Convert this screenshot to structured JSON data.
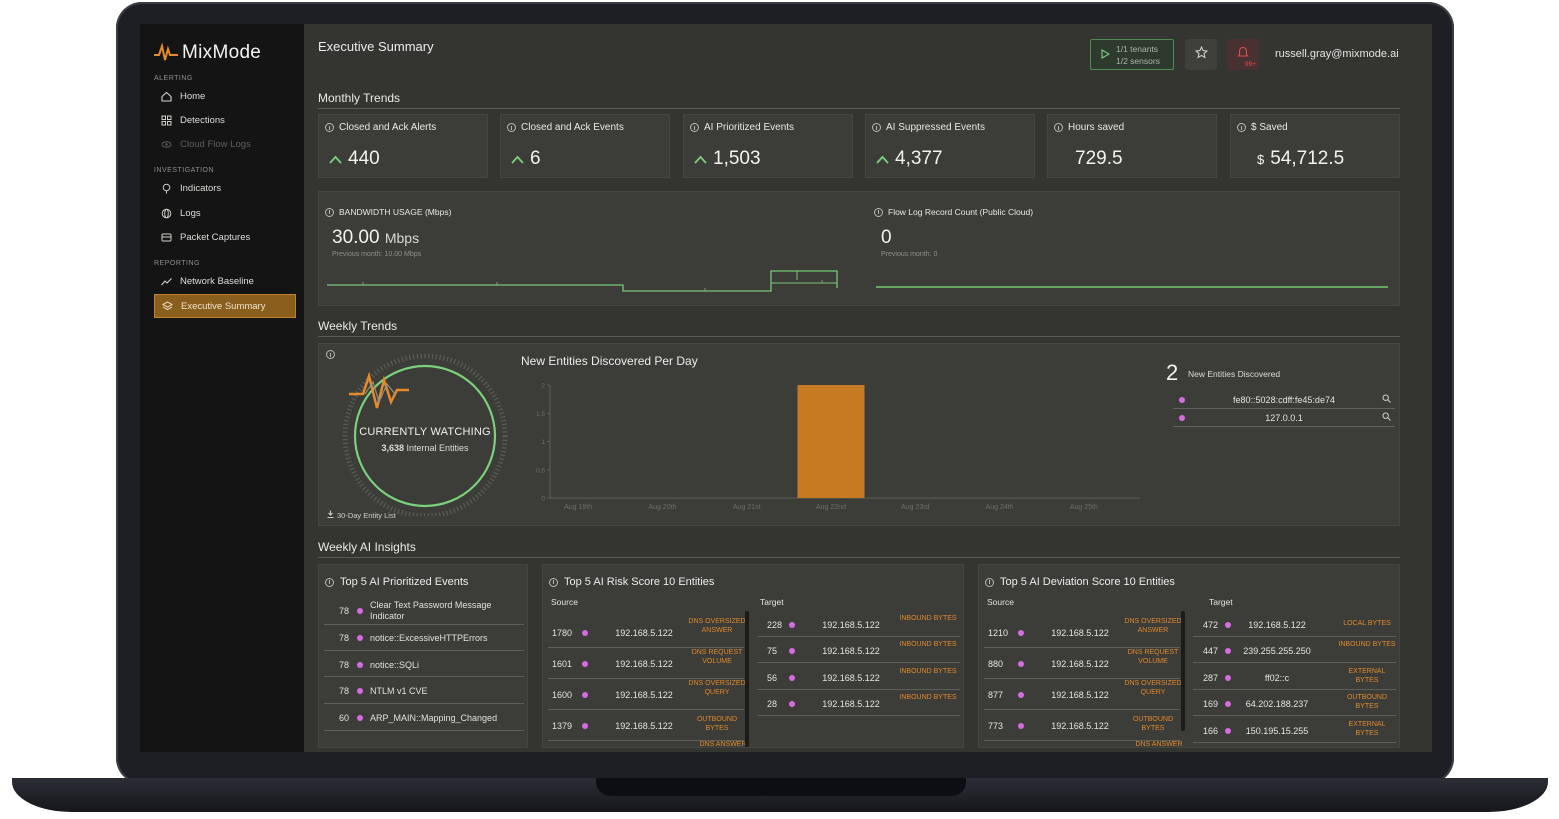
{
  "brand": {
    "name": "MixMode"
  },
  "sidebar": {
    "sections": [
      "ALERTING",
      "INVESTIGATION",
      "REPORTING"
    ],
    "items": [
      {
        "label": "Home",
        "icon": "home-icon"
      },
      {
        "label": "Detections",
        "icon": "grid-icon"
      },
      {
        "label": "Cloud Flow Logs",
        "icon": "eye-icon"
      },
      {
        "label": "Indicators",
        "icon": "bulb-icon"
      },
      {
        "label": "Logs",
        "icon": "globe-icon"
      },
      {
        "label": "Packet Captures",
        "icon": "archive-icon"
      },
      {
        "label": "Network Baseline",
        "icon": "trend-icon"
      },
      {
        "label": "Executive Summary",
        "icon": "layers-icon"
      }
    ]
  },
  "header": {
    "title": "Executive Summary",
    "tenants": "1/1 tenants",
    "sensors": "1/2 sensors",
    "notifications": "99+",
    "user": "russell.gray@mixmode.ai"
  },
  "monthly": {
    "title": "Monthly Trends",
    "kpis": [
      {
        "label": "Closed and Ack Alerts",
        "value": "440",
        "prefix": "",
        "trend": "up"
      },
      {
        "label": "Closed and Ack Events",
        "value": "6",
        "prefix": "",
        "trend": "up"
      },
      {
        "label": "AI Prioritized Events",
        "value": "1,503",
        "prefix": "",
        "trend": "up"
      },
      {
        "label": "AI Suppressed Events",
        "value": "4,377",
        "prefix": "",
        "trend": "up"
      },
      {
        "label": "Hours saved",
        "value": "729.5",
        "prefix": "",
        "trend": "none"
      },
      {
        "label": "$ Saved",
        "value": "54,712.5",
        "prefix": "$",
        "trend": "none"
      }
    ],
    "bandwidth": {
      "label": "BANDWIDTH USAGE (Mbps)",
      "value": "30.00",
      "unit": "Mbps",
      "previous": "Previous month: 10.00 Mbps"
    },
    "flowlog": {
      "label": "Flow Log Record Count (Public Cloud)",
      "value": "0",
      "previous": "Previous month: 0"
    }
  },
  "weekly": {
    "title": "Weekly Trends",
    "watching_title": "CURRENTLY WATCHING",
    "watching_count": "3,638",
    "watching_label": "Internal Entities",
    "entity_list_link": "30-Day Entity List",
    "new_count": "2",
    "new_label": "New Entities Discovered",
    "entities": [
      "fe80::5028:cdff:fe45:de74",
      "127.0.0.1"
    ]
  },
  "chart_data": {
    "type": "bar",
    "title": "New Entities Discovered Per Day",
    "categories": [
      "Aug 19th",
      "Aug 20th",
      "Aug 21st",
      "Aug 22nd",
      "Aug 23rd",
      "Aug 24th",
      "Aug 25th"
    ],
    "values": [
      0,
      0,
      0,
      2,
      0,
      0,
      0
    ],
    "yticks": [
      "0",
      "0.5",
      "1",
      "1.5",
      "2"
    ],
    "ylim": [
      0,
      2
    ],
    "color": "#c77a22"
  },
  "insights": {
    "title": "Weekly AI Insights",
    "prioritized": {
      "title": "Top 5 AI Prioritized Events",
      "rows": [
        {
          "score": "78",
          "name": "Clear Text Password Message Indicator"
        },
        {
          "score": "78",
          "name": "notice::ExcessiveHTTPErrors"
        },
        {
          "score": "78",
          "name": "notice::SQLi"
        },
        {
          "score": "78",
          "name": "NTLM v1 CVE"
        },
        {
          "score": "60",
          "name": "ARP_MAIN::Mapping_Changed"
        }
      ]
    },
    "risk": {
      "title": "Top 5 AI Risk Score 10 Entities",
      "source_label": "Source",
      "target_label": "Target",
      "source": [
        {
          "n": "1780",
          "ip": "192.168.5.122",
          "tag": "DNS OVERSIZED ANSWER"
        },
        {
          "n": "1601",
          "ip": "192.168.5.122",
          "tag": "DNS REQUEST VOLUME"
        },
        {
          "n": "1600",
          "ip": "192.168.5.122",
          "tag": "DNS OVERSIZED QUERY"
        },
        {
          "n": "1379",
          "ip": "192.168.5.122",
          "tag": "OUTBOUND BYTES"
        }
      ],
      "source_more": "DNS ANSWER",
      "target": [
        {
          "n": "228",
          "ip": "192.168.5.122",
          "tag": "INBOUND BYTES"
        },
        {
          "n": "75",
          "ip": "192.168.5.122",
          "tag": "INBOUND BYTES"
        },
        {
          "n": "56",
          "ip": "192.168.5.122",
          "tag": "INBOUND BYTES"
        },
        {
          "n": "28",
          "ip": "192.168.5.122",
          "tag": "INBOUND BYTES"
        }
      ]
    },
    "deviation": {
      "title": "Top 5 AI Deviation Score 10 Entities",
      "source_label": "Source",
      "target_label": "Target",
      "source": [
        {
          "n": "1210",
          "ip": "192.168.5.122",
          "tag": "DNS OVERSIZED ANSWER"
        },
        {
          "n": "880",
          "ip": "192.168.5.122",
          "tag": "DNS REQUEST VOLUME"
        },
        {
          "n": "877",
          "ip": "192.168.5.122",
          "tag": "DNS OVERSIZED QUERY"
        },
        {
          "n": "773",
          "ip": "192.168.5.122",
          "tag": "OUTBOUND BYTES"
        }
      ],
      "source_more": "DNS ANSWER",
      "target": [
        {
          "n": "472",
          "ip": "192.168.5.122",
          "tag": "LOCAL BYTES"
        },
        {
          "n": "447",
          "ip": "239.255.255.250",
          "tag": "INBOUND BYTES"
        },
        {
          "n": "287",
          "ip": "ff02::c",
          "tag": "EXTERNAL BYTES"
        },
        {
          "n": "169",
          "ip": "64.202.188.237",
          "tag": "OUTBOUND BYTES"
        },
        {
          "n": "166",
          "ip": "150.195.15.255",
          "tag": "EXTERNAL BYTES"
        }
      ]
    }
  }
}
